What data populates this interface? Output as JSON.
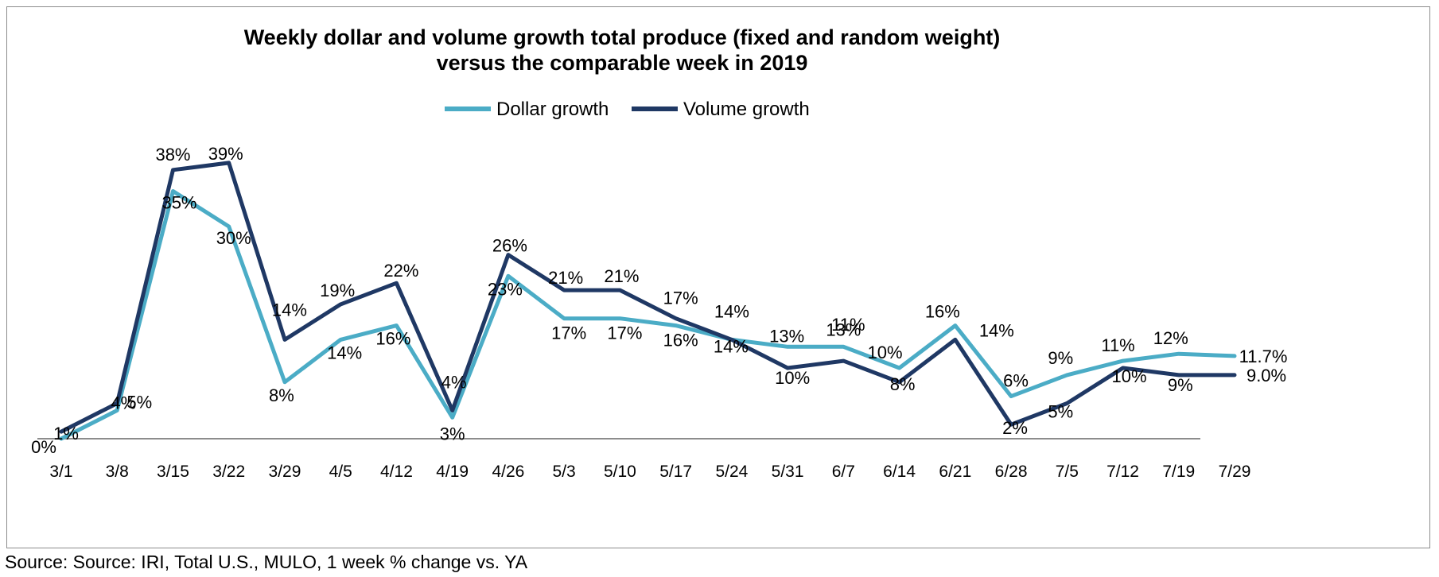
{
  "chart_data": {
    "type": "line",
    "title_lines": [
      "Weekly dollar and volume growth  total produce (fixed and random weight)",
      "versus the comparable week in 2019"
    ],
    "categories": [
      "3/1",
      "3/8",
      "3/15",
      "3/22",
      "3/29",
      "4/5",
      "4/12",
      "4/19",
      "4/26",
      "5/3",
      "5/10",
      "5/17",
      "5/24",
      "5/31",
      "6/7",
      "6/14",
      "6/21",
      "6/28",
      "7/5",
      "7/12",
      "7/19",
      "7/29"
    ],
    "series": [
      {
        "name": "Dollar growth",
        "color": "#4bacc6",
        "values": [
          0,
          4,
          35,
          30,
          8,
          14,
          16,
          3,
          23,
          17,
          17,
          16,
          14,
          13,
          13,
          10,
          16,
          6,
          9,
          11,
          12,
          11.7
        ],
        "labels": [
          "0%",
          "4%",
          "35%",
          "30%",
          "8%",
          "14%",
          "16%",
          "3%",
          "23%",
          "17%",
          "17%",
          "16%",
          "14%",
          "13%",
          "13%",
          "10%",
          "16%",
          "6%",
          "9%",
          "11%",
          "12%",
          "11.7%"
        ]
      },
      {
        "name": "Volume growth",
        "color": "#1f3864",
        "values": [
          1,
          5,
          38,
          39,
          14,
          19,
          22,
          4,
          26,
          21,
          21,
          17,
          14,
          10,
          11,
          8,
          14,
          2,
          5,
          10,
          9,
          9.0
        ],
        "labels": [
          "1%",
          "5%",
          "38%",
          "39%",
          "14%",
          "19%",
          "22%",
          "4%",
          "26%",
          "21%",
          "21%",
          "17%",
          "14%",
          "10%",
          "11%",
          "8%",
          "14%",
          "2%",
          "5%",
          "10%",
          "9%",
          "9.0%"
        ]
      }
    ],
    "ylim": [
      0,
      40
    ],
    "grid": false,
    "legend_position": "top-center",
    "axis_color": "#8c8c8c"
  },
  "source": "Source: Source: IRI, Total U.S., MULO, 1 week % change vs. YA"
}
